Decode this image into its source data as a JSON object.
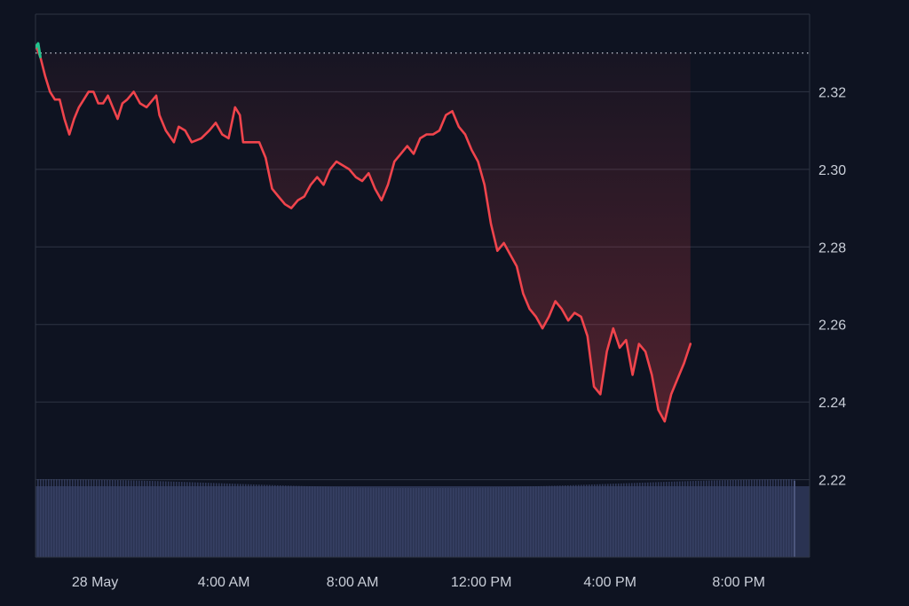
{
  "colors": {
    "background": "#0e1321",
    "grid": "#2e3444",
    "line": "#f0444c",
    "start_marker": "#22c38e",
    "baseline": "#aab0bc",
    "volume": "#2a3352",
    "text": "#c9ced8"
  },
  "chart_data": {
    "type": "line",
    "title": "",
    "xlabel": "",
    "ylabel": "",
    "x_tick_labels": [
      "28 May",
      "4:00 AM",
      "8:00 AM",
      "12:00 PM",
      "4:00 PM",
      "8:00 PM"
    ],
    "x_tick_hours": [
      0,
      4,
      8,
      12,
      16,
      20
    ],
    "x_range_hours": [
      -1.85,
      22.2
    ],
    "y_ticks": [
      2.22,
      2.24,
      2.26,
      2.28,
      2.3,
      2.32
    ],
    "ylim": [
      2.2,
      2.34
    ],
    "grid": true,
    "reference_line": 2.33,
    "series": [
      {
        "points": [
          [
            -1.85,
            2.332
          ],
          [
            -1.7,
            2.329
          ],
          [
            -1.55,
            2.324
          ],
          [
            -1.4,
            2.32
          ],
          [
            -1.25,
            2.318
          ],
          [
            -1.1,
            2.318
          ],
          [
            -0.95,
            2.313
          ],
          [
            -0.8,
            2.309
          ],
          [
            -0.65,
            2.313
          ],
          [
            -0.5,
            2.316
          ],
          [
            -0.35,
            2.318
          ],
          [
            -0.2,
            2.32
          ],
          [
            -0.05,
            2.32
          ],
          [
            0.1,
            2.317
          ],
          [
            0.25,
            2.317
          ],
          [
            0.4,
            2.319
          ],
          [
            0.55,
            2.316
          ],
          [
            0.7,
            2.313
          ],
          [
            0.85,
            2.317
          ],
          [
            1.0,
            2.318
          ],
          [
            1.2,
            2.32
          ],
          [
            1.4,
            2.317
          ],
          [
            1.6,
            2.316
          ],
          [
            1.9,
            2.319
          ],
          [
            2.0,
            2.314
          ],
          [
            2.2,
            2.31
          ],
          [
            2.45,
            2.307
          ],
          [
            2.6,
            2.311
          ],
          [
            2.8,
            2.31
          ],
          [
            3.0,
            2.307
          ],
          [
            3.3,
            2.308
          ],
          [
            3.55,
            2.31
          ],
          [
            3.75,
            2.312
          ],
          [
            3.95,
            2.309
          ],
          [
            4.15,
            2.308
          ],
          [
            4.35,
            2.316
          ],
          [
            4.5,
            2.314
          ],
          [
            4.6,
            2.307
          ],
          [
            4.9,
            2.307
          ],
          [
            5.1,
            2.307
          ],
          [
            5.3,
            2.303
          ],
          [
            5.5,
            2.295
          ],
          [
            5.7,
            2.293
          ],
          [
            5.9,
            2.291
          ],
          [
            6.1,
            2.29
          ],
          [
            6.3,
            2.292
          ],
          [
            6.5,
            2.293
          ],
          [
            6.7,
            2.296
          ],
          [
            6.9,
            2.298
          ],
          [
            7.1,
            2.296
          ],
          [
            7.3,
            2.3
          ],
          [
            7.5,
            2.302
          ],
          [
            7.7,
            2.301
          ],
          [
            7.9,
            2.3
          ],
          [
            8.1,
            2.298
          ],
          [
            8.3,
            2.297
          ],
          [
            8.5,
            2.299
          ],
          [
            8.7,
            2.295
          ],
          [
            8.9,
            2.292
          ],
          [
            9.1,
            2.296
          ],
          [
            9.3,
            2.302
          ],
          [
            9.5,
            2.304
          ],
          [
            9.7,
            2.306
          ],
          [
            9.9,
            2.304
          ],
          [
            10.1,
            2.308
          ],
          [
            10.3,
            2.309
          ],
          [
            10.5,
            2.309
          ],
          [
            10.7,
            2.31
          ],
          [
            10.9,
            2.314
          ],
          [
            11.1,
            2.315
          ],
          [
            11.3,
            2.311
          ],
          [
            11.5,
            2.309
          ],
          [
            11.7,
            2.305
          ],
          [
            11.9,
            2.302
          ],
          [
            12.1,
            2.296
          ],
          [
            12.3,
            2.286
          ],
          [
            12.5,
            2.279
          ],
          [
            12.7,
            2.281
          ],
          [
            12.9,
            2.278
          ],
          [
            13.1,
            2.275
          ],
          [
            13.3,
            2.268
          ],
          [
            13.5,
            2.264
          ],
          [
            13.7,
            2.262
          ],
          [
            13.9,
            2.259
          ],
          [
            14.1,
            2.262
          ],
          [
            14.3,
            2.266
          ],
          [
            14.5,
            2.264
          ],
          [
            14.7,
            2.261
          ],
          [
            14.9,
            2.263
          ],
          [
            15.1,
            2.262
          ],
          [
            15.3,
            2.257
          ],
          [
            15.5,
            2.244
          ],
          [
            15.7,
            2.242
          ],
          [
            15.9,
            2.253
          ],
          [
            16.1,
            2.259
          ],
          [
            16.3,
            2.254
          ],
          [
            16.5,
            2.256
          ],
          [
            16.7,
            2.247
          ],
          [
            16.9,
            2.255
          ],
          [
            17.1,
            2.253
          ],
          [
            17.3,
            2.247
          ],
          [
            17.5,
            2.238
          ],
          [
            17.7,
            2.235
          ],
          [
            17.9,
            2.242
          ],
          [
            18.1,
            2.246
          ],
          [
            18.3,
            2.25
          ],
          [
            18.5,
            2.255
          ]
        ]
      }
    ]
  }
}
